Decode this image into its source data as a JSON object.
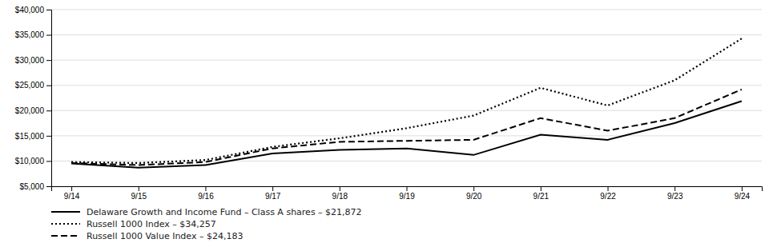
{
  "chart_data": {
    "type": "line",
    "categories": [
      "9/14",
      "9/15",
      "9/16",
      "9/17",
      "9/18",
      "9/19",
      "9/20",
      "9/21",
      "9/22",
      "9/23",
      "9/24"
    ],
    "series": [
      {
        "name": "Delaware Growth and Income Fund – Class A shares – $21,872",
        "color": "#000000",
        "line_style": "solid",
        "values": [
          9500,
          8700,
          9200,
          11500,
          12200,
          12500,
          11200,
          15200,
          14200,
          17500,
          21872
        ]
      },
      {
        "name": "Russell 1000 Index – $34,257",
        "color": "#000000",
        "line_style": "dotted",
        "values": [
          9800,
          9600,
          10200,
          12800,
          14500,
          16500,
          19000,
          24500,
          21000,
          26000,
          34257
        ]
      },
      {
        "name": "Russell 1000 Value Index – $24,183",
        "color": "#000000",
        "line_style": "dashed",
        "values": [
          9600,
          9200,
          9800,
          12500,
          13800,
          14000,
          14200,
          18500,
          16000,
          18500,
          24183
        ]
      }
    ],
    "ylim": [
      5000,
      40000
    ],
    "yticks": [
      {
        "value": 5000,
        "label": "$5,000"
      },
      {
        "value": 10000,
        "label": "$10,000"
      },
      {
        "value": 15000,
        "label": "$15,000"
      },
      {
        "value": 20000,
        "label": "$20,000"
      },
      {
        "value": 25000,
        "label": "$25,000"
      },
      {
        "value": 30000,
        "label": "$30,000"
      },
      {
        "value": 35000,
        "label": "$35,000"
      },
      {
        "value": 40000,
        "label": "$40,000"
      }
    ],
    "grid": true,
    "legend": "bottom"
  }
}
